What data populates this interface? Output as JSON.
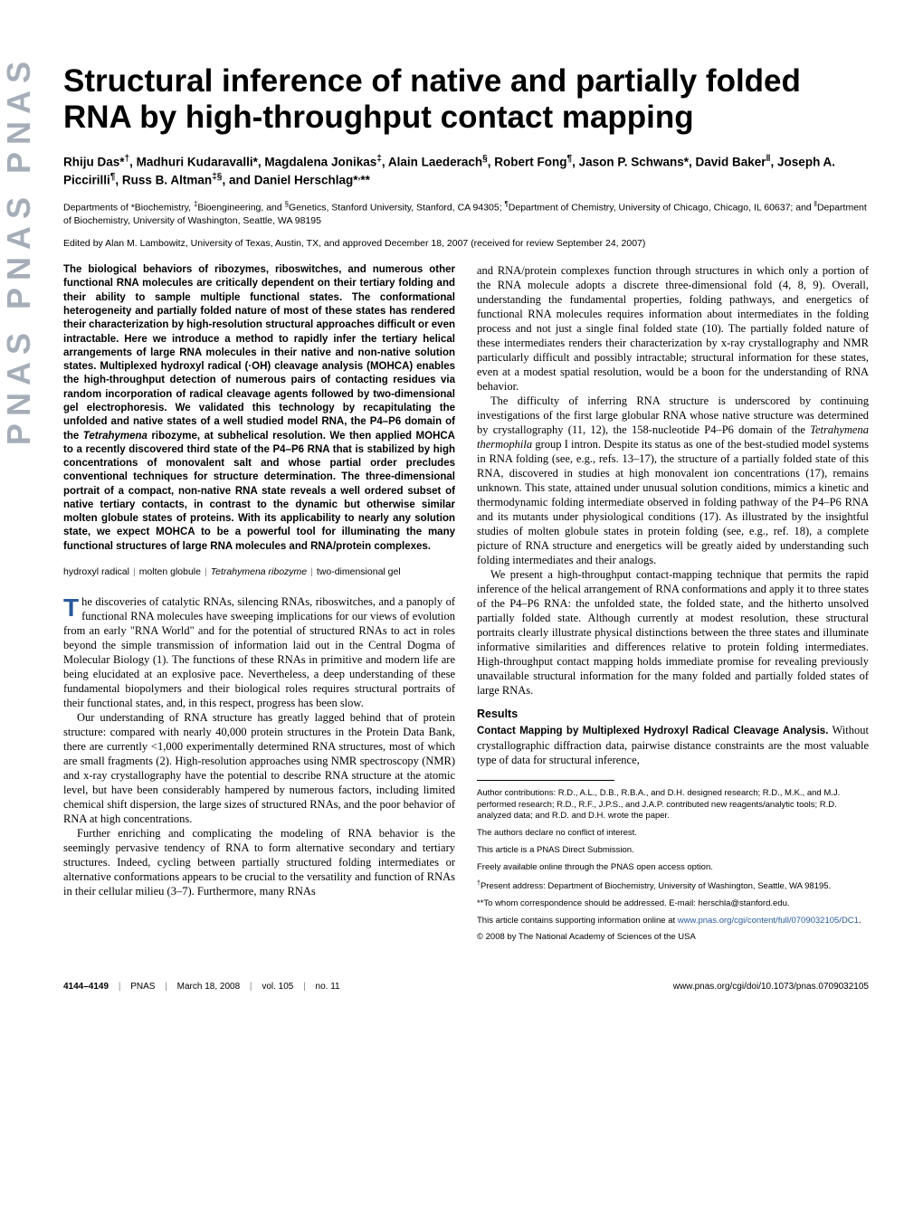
{
  "banner": {
    "text": "PNAS  PNAS  PNAS"
  },
  "title": "Structural inference of native and partially folded RNA by high-throughput contact mapping",
  "authors_html": "Rhiju Das*<sup>†</sup>, Madhuri Kudaravalli*, Magdalena Jonikas<sup>‡</sup>, Alain Laederach<sup>§</sup>, Robert Fong<sup>¶</sup>, Jason P. Schwans*, David Baker<sup>‖</sup>, Joseph A. Piccirilli<sup>¶</sup>, Russ B. Altman<sup>‡§</sup>, and Daniel Herschlag*<sup>,</sup>**",
  "affiliations_html": "Departments of *Biochemistry, <sup>‡</sup>Bioengineering, and <sup>§</sup>Genetics, Stanford University, Stanford, CA 94305; <sup>¶</sup>Department of Chemistry, University of Chicago, Chicago, IL 60637; and <sup>‖</sup>Department of Biochemistry, University of Washington, Seattle, WA 98195",
  "edited_by": "Edited by Alan M. Lambowitz, University of Texas, Austin, TX, and approved December 18, 2007 (received for review September 24, 2007)",
  "abstract_html": "The biological behaviors of ribozymes, riboswitches, and numerous other functional RNA molecules are critically dependent on their tertiary folding and their ability to sample multiple functional states. The conformational heterogeneity and partially folded nature of most of these states has rendered their characterization by high-resolution structural approaches difficult or even intractable. Here we introduce a method to rapidly infer the tertiary helical arrangements of large RNA molecules in their native and non-native solution states. Multiplexed hydroxyl radical (·OH) cleavage analysis (MOHCA) enables the high-throughput detection of numerous pairs of contacting residues via random incorporation of radical cleavage agents followed by two-dimensional gel electrophoresis. We validated this technology by recapitulating the unfolded and native states of a well studied model RNA, the P4–P6 domain of the <em class=\"species\">Tetrahymena</em> ribozyme, at subhelical resolution. We then applied MOHCA to a recently discovered third state of the P4–P6 RNA that is stabilized by high concentrations of monovalent salt and whose partial order precludes conventional techniques for structure determination. The three-dimensional portrait of a compact, non-native RNA state reveals a well ordered subset of native tertiary contacts, in contrast to the dynamic but otherwise similar molten globule states of proteins. With its applicability to nearly any solution state, we expect MOHCA to be a powerful tool for illuminating the many functional structures of large RNA molecules and RNA/protein complexes.",
  "keywords": [
    "hydroxyl radical",
    "molten globule",
    "Tetrahymena ribozyme",
    "two-dimensional gel"
  ],
  "body": {
    "p1_html": "he discoveries of catalytic RNAs, silencing RNAs, riboswitches, and a panoply of functional RNA molecules have sweeping implications for our views of evolution from an early \"RNA World\" and for the potential of structured RNAs to act in roles beyond the simple transmission of information laid out in the Central Dogma of Molecular Biology (1). The functions of these RNAs in primitive and modern life are being elucidated at an explosive pace. Nevertheless, a deep understanding of these fundamental biopolymers and their biological roles requires structural portraits of their functional states, and, in this respect, progress has been slow.",
    "p2_html": "Our understanding of RNA structure has greatly lagged behind that of protein structure: compared with nearly 40,000 protein structures in the Protein Data Bank, there are currently &lt;1,000 experimentally determined RNA structures, most of which are small fragments (2). High-resolution approaches using NMR spectroscopy (NMR) and x-ray crystallography have the potential to describe RNA structure at the atomic level, but have been considerably hampered by numerous factors, including limited chemical shift dispersion, the large sizes of structured RNAs, and the poor behavior of RNA at high concentrations.",
    "p3_html": "Further enriching and complicating the modeling of RNA behavior is the seemingly pervasive tendency of RNA to form alternative secondary and tertiary structures. Indeed, cycling between partially structured folding intermediates or alternative conformations appears to be crucial to the versatility and function of RNAs in their cellular milieu (3–7). Furthermore, many RNAs",
    "p4_html": "and RNA/protein complexes function through structures in which only a portion of the RNA molecule adopts a discrete three-dimensional fold (4, 8, 9). Overall, understanding the fundamental properties, folding pathways, and energetics of functional RNA molecules requires information about intermediates in the folding process and not just a single final folded state (10). The partially folded nature of these intermediates renders their characterization by x-ray crystallography and NMR particularly difficult and possibly intractable; structural information for these states, even at a modest spatial resolution, would be a boon for the understanding of RNA behavior.",
    "p5_html": "The difficulty of inferring RNA structure is underscored by continuing investigations of the first large globular RNA whose native structure was determined by crystallography (11, 12), the 158-nucleotide P4–P6 domain of the <em class=\"species\">Tetrahymena thermophila</em> group I intron. Despite its status as one of the best-studied model systems in RNA folding (see, e.g., refs. 13–17), the structure of a partially folded state of this RNA, discovered in studies at high monovalent ion concentrations (17), remains unknown. This state, attained under unusual solution conditions, mimics a kinetic and thermodynamic folding intermediate observed in folding pathway of the P4–P6 RNA and its mutants under physiological conditions (17). As illustrated by the insightful studies of molten globule states in protein folding (see, e.g., ref. 18), a complete picture of RNA structure and energetics will be greatly aided by understanding such folding intermediates and their analogs.",
    "p6_html": "We present a high-throughput contact-mapping technique that permits the rapid inference of the helical arrangement of RNA conformations and apply it to three states of the P4–P6 RNA: the unfolded state, the folded state, and the hitherto unsolved partially folded state. Although currently at modest resolution, these structural portraits clearly illustrate physical distinctions between the three states and illuminate informative similarities and differences relative to protein folding intermediates. High-throughput contact mapping holds immediate promise for revealing previously unavailable structural information for the many folded and partially folded states of large RNAs."
  },
  "results": {
    "head": "Results",
    "sub_head": "Contact Mapping by Multiplexed Hydroxyl Radical Cleavage Analysis.",
    "sub_text": " Without crystallographic diffraction data, pairwise distance constraints are the most valuable type of data for structural inference,"
  },
  "footnotes": {
    "author_contrib": "Author contributions: R.D., A.L., D.B., R.B.A., and D.H. designed research; R.D., M.K., and M.J. performed research; R.D., R.F., J.P.S., and J.A.P. contributed new reagents/analytic tools; R.D. analyzed data; and R.D. and D.H. wrote the paper.",
    "conflict": "The authors declare no conflict of interest.",
    "direct": "This article is a PNAS Direct Submission.",
    "open_access": "Freely available online through the PNAS open access option.",
    "present_address": "<sup>†</sup>Present address: Department of Biochemistry, University of Washington, Seattle, WA 98195.",
    "correspondence": "**To whom correspondence should be addressed. E-mail: herschla@stanford.edu.",
    "si_prefix": "This article contains supporting information online at ",
    "si_link": "www.pnas.org/cgi/content/full/0709032105/DC1",
    "si_suffix": ".",
    "copyright": "© 2008 by The National Academy of Sciences of the USA"
  },
  "footer": {
    "pages": "4144–4149",
    "journal": "PNAS",
    "date": "March 18, 2008",
    "vol": "vol. 105",
    "issue": "no. 11",
    "doi": "www.pnas.org/cgi/doi/10.1073/pnas.0709032105"
  },
  "style": {
    "link_color": "#2a5a9a",
    "dropcap_color": "#2a5a9a"
  }
}
